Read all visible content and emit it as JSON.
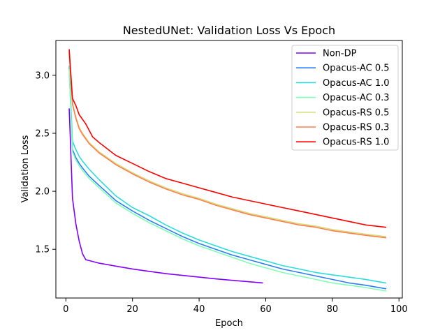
{
  "chart_data": {
    "type": "line",
    "title": "NestedUNet: Validation Loss Vs Epoch",
    "xlabel": "Epoch",
    "ylabel": "Validation Loss",
    "xlim": [
      -3,
      101
    ],
    "ylim": [
      1.08,
      3.3
    ],
    "xticks": [
      0,
      20,
      40,
      60,
      80,
      100
    ],
    "yticks": [
      1.5,
      2.0,
      2.5,
      3.0
    ],
    "xtick_labels": [
      "0",
      "20",
      "40",
      "60",
      "80",
      "100"
    ],
    "ytick_labels": [
      "1.5",
      "2.0",
      "2.5",
      "3.0"
    ],
    "grid": false,
    "legend_position": "top-right",
    "series": [
      {
        "name": "Non-DP",
        "color": "#8000ff",
        "x": [
          1,
          2,
          3,
          4,
          5,
          6,
          8,
          10,
          15,
          20,
          25,
          30,
          35,
          40,
          45,
          50,
          55,
          59
        ],
        "y": [
          2.71,
          1.94,
          1.72,
          1.57,
          1.46,
          1.41,
          1.395,
          1.38,
          1.355,
          1.33,
          1.31,
          1.29,
          1.275,
          1.26,
          1.245,
          1.232,
          1.22,
          1.21
        ]
      },
      {
        "name": "Opacus-AC 0.5",
        "color": "#2c7ef7",
        "x": [
          1,
          2,
          3,
          4,
          5,
          7,
          10,
          15,
          20,
          25,
          30,
          35,
          40,
          45,
          50,
          55,
          60,
          65,
          70,
          75,
          80,
          85,
          90,
          96
        ],
        "y": [
          3.06,
          2.36,
          2.29,
          2.24,
          2.2,
          2.13,
          2.05,
          1.92,
          1.83,
          1.75,
          1.68,
          1.61,
          1.55,
          1.5,
          1.45,
          1.41,
          1.37,
          1.33,
          1.3,
          1.27,
          1.24,
          1.21,
          1.19,
          1.16
        ]
      },
      {
        "name": "Opacus-AC 1.0",
        "color": "#2adddd",
        "x": [
          1,
          2,
          3,
          4,
          5,
          7,
          10,
          15,
          20,
          25,
          30,
          35,
          40,
          45,
          50,
          55,
          60,
          65,
          70,
          75,
          80,
          85,
          90,
          96
        ],
        "y": [
          3.08,
          2.43,
          2.36,
          2.3,
          2.26,
          2.19,
          2.1,
          1.96,
          1.86,
          1.79,
          1.71,
          1.64,
          1.58,
          1.53,
          1.48,
          1.44,
          1.4,
          1.36,
          1.33,
          1.3,
          1.28,
          1.26,
          1.24,
          1.21
        ]
      },
      {
        "name": "Opacus-AC 0.3",
        "color": "#80ffb4",
        "x": [
          1,
          2,
          3,
          4,
          5,
          7,
          10,
          15,
          20,
          25,
          30,
          35,
          40,
          45,
          50,
          55,
          60,
          65,
          70,
          75,
          80,
          85,
          90,
          96
        ],
        "y": [
          3.05,
          2.34,
          2.27,
          2.22,
          2.18,
          2.11,
          2.03,
          1.9,
          1.81,
          1.73,
          1.66,
          1.59,
          1.53,
          1.48,
          1.43,
          1.38,
          1.34,
          1.3,
          1.27,
          1.24,
          1.21,
          1.19,
          1.17,
          1.14
        ]
      },
      {
        "name": "Opacus-RS 0.5",
        "color": "#d4dd80",
        "x": [
          1,
          2,
          3,
          4,
          5,
          7,
          10,
          15,
          20,
          25,
          30,
          35,
          40,
          45,
          50,
          55,
          60,
          65,
          70,
          75,
          80,
          85,
          90,
          96
        ],
        "y": [
          3.2,
          2.76,
          2.64,
          2.55,
          2.5,
          2.42,
          2.34,
          2.24,
          2.16,
          2.09,
          2.03,
          1.98,
          1.94,
          1.89,
          1.85,
          1.81,
          1.78,
          1.75,
          1.72,
          1.7,
          1.67,
          1.65,
          1.63,
          1.61
        ]
      },
      {
        "name": "Opacus-RS 0.3",
        "color": "#ff7f4a",
        "x": [
          1,
          2,
          3,
          4,
          5,
          7,
          10,
          15,
          20,
          25,
          30,
          35,
          40,
          45,
          50,
          55,
          60,
          65,
          70,
          75,
          80,
          85,
          90,
          96
        ],
        "y": [
          3.19,
          2.75,
          2.63,
          2.54,
          2.49,
          2.41,
          2.33,
          2.23,
          2.15,
          2.08,
          2.02,
          1.97,
          1.93,
          1.88,
          1.84,
          1.8,
          1.77,
          1.74,
          1.71,
          1.69,
          1.66,
          1.64,
          1.62,
          1.6
        ]
      },
      {
        "name": "Opacus-RS 1.0",
        "color": "#ff0000",
        "x": [
          1,
          2,
          3,
          4,
          5,
          6,
          8,
          10,
          15,
          20,
          25,
          30,
          35,
          40,
          45,
          50,
          55,
          60,
          65,
          70,
          75,
          80,
          85,
          90,
          96
        ],
        "y": [
          3.22,
          2.8,
          2.74,
          2.66,
          2.62,
          2.58,
          2.47,
          2.42,
          2.31,
          2.24,
          2.17,
          2.11,
          2.07,
          2.03,
          1.99,
          1.95,
          1.92,
          1.89,
          1.86,
          1.83,
          1.8,
          1.77,
          1.74,
          1.71,
          1.69
        ]
      }
    ]
  }
}
